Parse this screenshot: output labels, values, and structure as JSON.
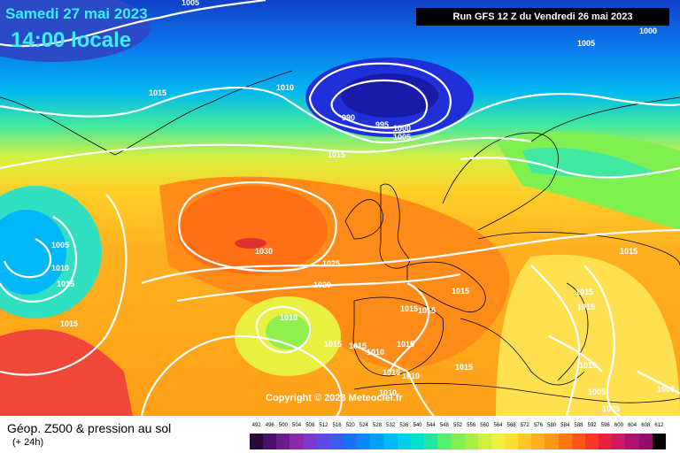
{
  "header": {
    "date": "Samedi 27 mai 2023",
    "local_time": "14:00 locale",
    "run_info": "Run GFS 12 Z du Vendredi 26 mai 2023"
  },
  "footer": {
    "title": "Géop. Z500 & pression au sol",
    "subtitle": "(+ 24h)",
    "copyright": "Copyright © 2023 Meteociel.fr"
  },
  "scale": {
    "ticks": [
      "492",
      "496",
      "500",
      "504",
      "508",
      "512",
      "516",
      "520",
      "524",
      "528",
      "532",
      "536",
      "540",
      "544",
      "548",
      "552",
      "556",
      "560",
      "564",
      "568",
      "572",
      "576",
      "580",
      "584",
      "588",
      "592",
      "596",
      "600",
      "604",
      "608",
      "612"
    ],
    "colors": [
      "#2a0a3a",
      "#4a0f66",
      "#6a1a8a",
      "#8a2aaa",
      "#7a3ad0",
      "#5a4ae8",
      "#3a5cf0",
      "#1a70f8",
      "#0a88ff",
      "#00a0ff",
      "#00b8f8",
      "#00d0e8",
      "#00e0c8",
      "#20e8a0",
      "#50f070",
      "#80f050",
      "#a8f040",
      "#d0f040",
      "#f0f040",
      "#ffe030",
      "#ffc828",
      "#ffb020",
      "#ff9818",
      "#ff7810",
      "#ff5818",
      "#f83828",
      "#e82040",
      "#d01860",
      "#b01070",
      "#901070",
      "#000000"
    ]
  },
  "pressure_labels": [
    {
      "text": "1005",
      "id": "n1"
    },
    {
      "text": "1000",
      "id": "n2"
    },
    {
      "text": "1005",
      "id": "n3"
    },
    {
      "text": "1015",
      "id": "n4"
    },
    {
      "text": "1010",
      "id": "n5"
    },
    {
      "text": "990",
      "id": "n6"
    },
    {
      "text": "995",
      "id": "n7"
    },
    {
      "text": "1000",
      "id": "n8"
    },
    {
      "text": "1005",
      "id": "n9"
    },
    {
      "text": "1015",
      "id": "n10"
    },
    {
      "text": "1005",
      "id": "n11"
    },
    {
      "text": "1010",
      "id": "n12"
    },
    {
      "text": "1015",
      "id": "n13"
    },
    {
      "text": "1015",
      "id": "n14"
    },
    {
      "text": "1030",
      "id": "n15"
    },
    {
      "text": "1025",
      "id": "n16"
    },
    {
      "text": "1020",
      "id": "n17"
    },
    {
      "text": "1010",
      "id": "n18"
    },
    {
      "text": "1015",
      "id": "n19"
    },
    {
      "text": "1015",
      "id": "n20"
    },
    {
      "text": "1015",
      "id": "n21"
    },
    {
      "text": "1015",
      "id": "n22"
    },
    {
      "text": "1015",
      "id": "n23"
    },
    {
      "text": "1010",
      "id": "n24"
    },
    {
      "text": "1015",
      "id": "n25"
    },
    {
      "text": "1015",
      "id": "n26"
    },
    {
      "text": "1015",
      "id": "n27"
    },
    {
      "text": "1010",
      "id": "n28"
    },
    {
      "text": "1010",
      "id": "n29"
    },
    {
      "text": "1015",
      "id": "n30"
    },
    {
      "text": "1015",
      "id": "n31"
    },
    {
      "text": "1015",
      "id": "n32"
    },
    {
      "text": "1005",
      "id": "n33"
    },
    {
      "text": "1005",
      "id": "n34"
    },
    {
      "text": "1005",
      "id": "n35"
    },
    {
      "text": "1010",
      "id": "n36"
    }
  ]
}
